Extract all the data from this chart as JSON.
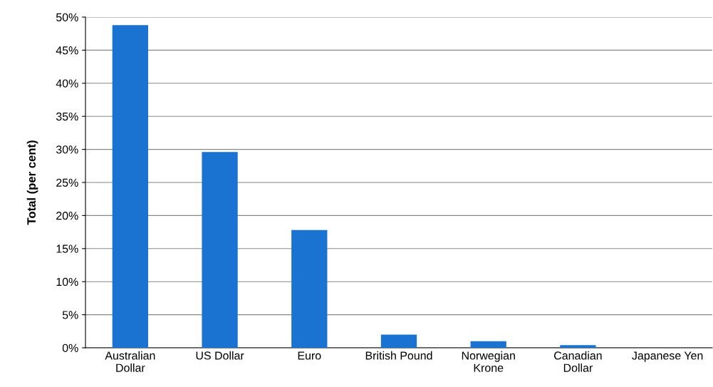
{
  "chart_data": {
    "type": "bar",
    "ylabel": "Total (per cent)",
    "categories": [
      "Australian\nDollar",
      "US Dollar",
      "Euro",
      "British Pound",
      "Norwegian\nKrone",
      "Canadian\nDollar",
      "Japanese Yen"
    ],
    "values": [
      48.8,
      29.6,
      17.8,
      2.0,
      1.0,
      0.4,
      0
    ],
    "color": "#1a73d0",
    "ylim": [
      0,
      50
    ],
    "yticks": [
      {
        "value": 0,
        "label": "0%"
      },
      {
        "value": 5,
        "label": "5%"
      },
      {
        "value": 10,
        "label": "10%"
      },
      {
        "value": 15,
        "label": "15%"
      },
      {
        "value": 20,
        "label": "20%"
      },
      {
        "value": 25,
        "label": "25%"
      },
      {
        "value": 30,
        "label": "30%"
      },
      {
        "value": 35,
        "label": "35%"
      },
      {
        "value": 40,
        "label": "40%"
      },
      {
        "value": 45,
        "label": "45%"
      },
      {
        "value": 50,
        "label": "50%"
      }
    ],
    "grid": "y",
    "legend": false
  }
}
